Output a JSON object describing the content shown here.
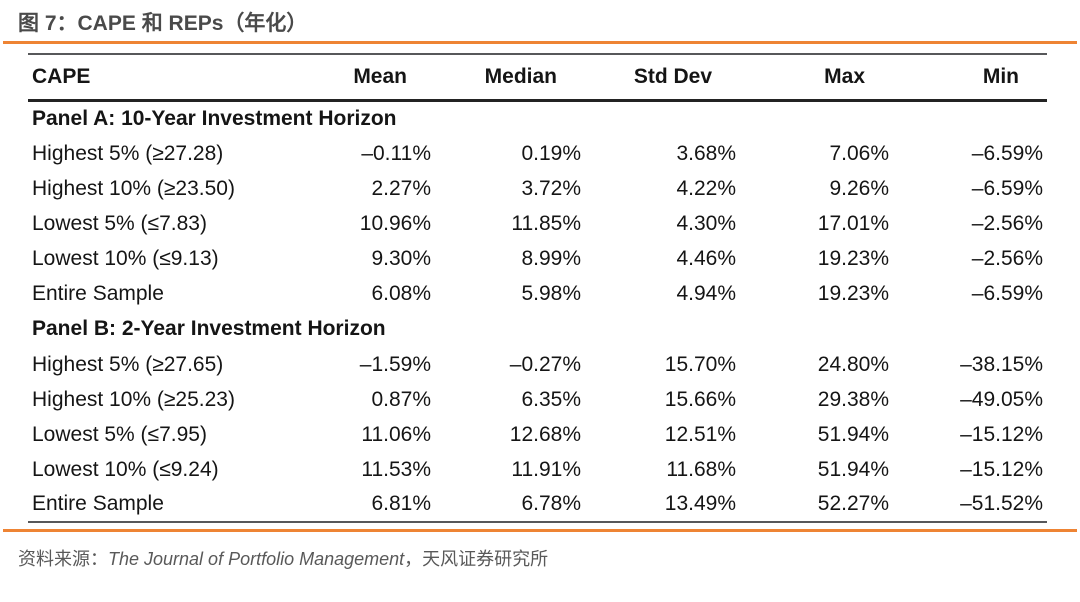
{
  "title": "图 7：CAPE 和 REPs（年化）",
  "colors": {
    "accent_orange": "#ee8434",
    "title_gray": "#4a4a4a",
    "border_gray": "#57585a",
    "header_underline": "#232323",
    "table_text": "#151515",
    "source_gray": "#595959"
  },
  "table": {
    "columns": [
      "CAPE",
      "Mean",
      "Median",
      "Std Dev",
      "Max",
      "Min"
    ],
    "sections": [
      {
        "header": "Panel A: 10-Year Investment Horizon",
        "rows": [
          {
            "label": "Highest 5% (≥27.28)",
            "values": [
              "–0.11%",
              "0.19%",
              "3.68%",
              "7.06%",
              "–6.59%"
            ]
          },
          {
            "label": "Highest 10% (≥23.50)",
            "values": [
              "2.27%",
              "3.72%",
              "4.22%",
              "9.26%",
              "–6.59%"
            ]
          },
          {
            "label": "Lowest 5% (≤7.83)",
            "values": [
              "10.96%",
              "11.85%",
              "4.30%",
              "17.01%",
              "–2.56%"
            ]
          },
          {
            "label": "Lowest 10% (≤9.13)",
            "values": [
              "9.30%",
              "8.99%",
              "4.46%",
              "19.23%",
              "–2.56%"
            ]
          },
          {
            "label": "Entire Sample",
            "values": [
              "6.08%",
              "5.98%",
              "4.94%",
              "19.23%",
              "–6.59%"
            ]
          }
        ]
      },
      {
        "header": "Panel B: 2-Year Investment Horizon",
        "rows": [
          {
            "label": "Highest 5% (≥27.65)",
            "values": [
              "–1.59%",
              "–0.27%",
              "15.70%",
              "24.80%",
              "–38.15%"
            ]
          },
          {
            "label": "Highest 10% (≥25.23)",
            "values": [
              "0.87%",
              "6.35%",
              "15.66%",
              "29.38%",
              "–49.05%"
            ]
          },
          {
            "label": "Lowest 5% (≤7.95)",
            "values": [
              "11.06%",
              "12.68%",
              "12.51%",
              "51.94%",
              "–15.12%"
            ]
          },
          {
            "label": "Lowest 10% (≤9.24)",
            "values": [
              "11.53%",
              "11.91%",
              "11.68%",
              "51.94%",
              "–15.12%"
            ]
          },
          {
            "label": "Entire Sample",
            "values": [
              "6.81%",
              "6.78%",
              "13.49%",
              "52.27%",
              "–51.52%"
            ]
          }
        ]
      }
    ]
  },
  "footer": {
    "source_prefix": "资料来源：",
    "source_italic": "The Journal of Portfolio Management",
    "source_suffix": "，天风证券研究所"
  },
  "chart_data": {
    "type": "table",
    "title": "图 7：CAPE 和 REPs（年化）",
    "columns": [
      "CAPE",
      "Mean",
      "Median",
      "Std Dev",
      "Max",
      "Min"
    ],
    "rows": [
      [
        "Panel A: 10-Year Investment Horizon",
        "",
        "",
        "",
        "",
        ""
      ],
      [
        "Highest 5% (≥27.28)",
        "–0.11%",
        "0.19%",
        "3.68%",
        "7.06%",
        "–6.59%"
      ],
      [
        "Highest 10% (≥23.50)",
        "2.27%",
        "3.72%",
        "4.22%",
        "9.26%",
        "–6.59%"
      ],
      [
        "Lowest 5% (≤7.83)",
        "10.96%",
        "11.85%",
        "4.30%",
        "17.01%",
        "–2.56%"
      ],
      [
        "Lowest 10% (≤9.13)",
        "9.30%",
        "8.99%",
        "4.46%",
        "19.23%",
        "–2.56%"
      ],
      [
        "Entire Sample",
        "6.08%",
        "5.98%",
        "4.94%",
        "19.23%",
        "–6.59%"
      ],
      [
        "Panel B: 2-Year Investment Horizon",
        "",
        "",
        "",
        "",
        ""
      ],
      [
        "Highest 5% (≥27.65)",
        "–1.59%",
        "–0.27%",
        "15.70%",
        "24.80%",
        "–38.15%"
      ],
      [
        "Highest 10% (≥25.23)",
        "0.87%",
        "6.35%",
        "15.66%",
        "29.38%",
        "–49.05%"
      ],
      [
        "Lowest 5% (≤7.95)",
        "11.06%",
        "12.68%",
        "12.51%",
        "51.94%",
        "–15.12%"
      ],
      [
        "Lowest 10% (≤9.24)",
        "11.53%",
        "11.91%",
        "11.68%",
        "51.94%",
        "–15.12%"
      ],
      [
        "Entire Sample",
        "6.81%",
        "6.78%",
        "13.49%",
        "52.27%",
        "–51.52%"
      ]
    ]
  }
}
